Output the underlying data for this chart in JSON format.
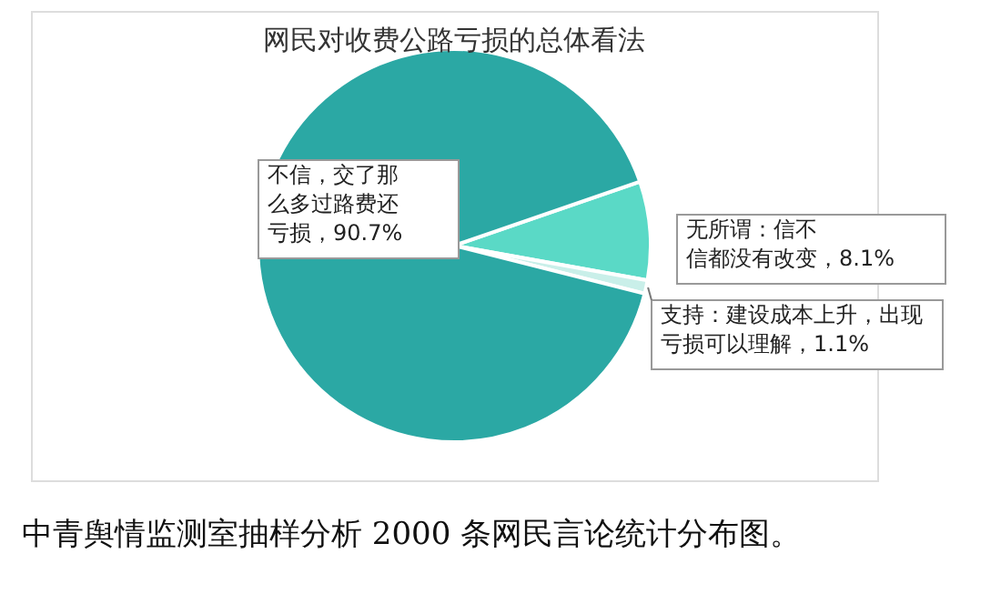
{
  "chart_data": {
    "type": "pie",
    "title": "网民对收费公路亏损的总体看法",
    "categories": [
      "无所谓：信不信都没有改变",
      "支持：建设成本上升，出现亏损可以理解",
      "不信，交了那么多过路费还亏损"
    ],
    "values": [
      8.1,
      1.1,
      90.7
    ],
    "colors": [
      "#5ad9c6",
      "#c9efe9",
      "#2ba8a4"
    ],
    "value_labels": [
      "，8.1%",
      "，1.1%",
      "，90.7%"
    ],
    "legend": false,
    "annotations": [
      "中青舆情监测室抽样分析 2000 条网民言论统计分布图。"
    ]
  }
}
